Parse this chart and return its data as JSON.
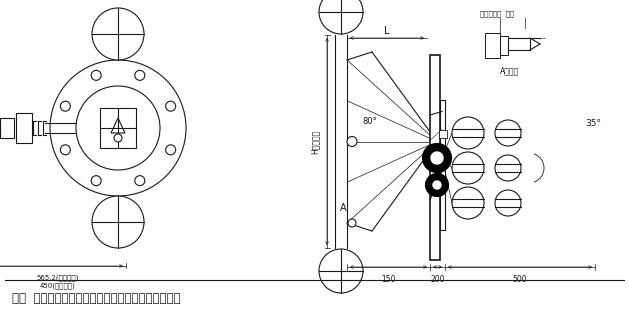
{
  "title": "图二  大转角型电动浮球液位变送器结构及安装尺寸图",
  "bg_color": "#ffffff",
  "line_color": "#1a1a1a",
  "dim_150": "150",
  "dim_200": "200",
  "dim_500": "500",
  "dim_L": "L",
  "dim_A": "A",
  "angle_80": "80°",
  "angle_35": "35°",
  "label_H": "H（量程）",
  "label_enlarge": "A部放大",
  "label_slide": "滑行导杆套  端径",
  "label_565": "565.2(带基角片)",
  "label_450": "450(无基角片)"
}
